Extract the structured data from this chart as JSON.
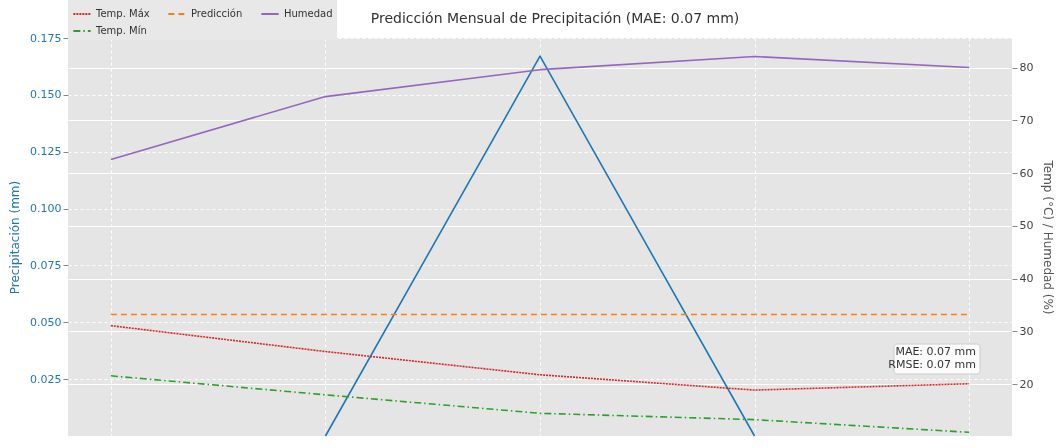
{
  "chart_data": {
    "type": "line",
    "title": "Predicción Mensual de Precipitación (MAE: 0.07 mm)",
    "ylabel": "Precipitación (mm)",
    "y2label": "Temp (°C) / Humedad (%)",
    "categories": [
      null,
      null,
      null,
      null,
      null
    ],
    "series": [
      {
        "color": "#1f77b4",
        "values": [
          null,
          0,
          0.167,
          0,
          null
        ],
        "line_style": "solid"
      },
      {
        "name": "Temp. Máx",
        "color": "#d62728",
        "axis": "y2",
        "values": [
          31.1,
          26.2,
          21.8,
          18.9,
          20.1
        ],
        "line_style": "dotted"
      },
      {
        "name": "Humedad",
        "color": "#9467bd",
        "axis": "y2",
        "values": [
          62.6,
          74.5,
          79.6,
          82.1,
          80.0
        ],
        "line_style": "solid"
      },
      {
        "name": "Predicción",
        "color": "#ff7f0e",
        "values": [
          0.0534,
          0.0534,
          0.0534,
          0.0534,
          0.0534
        ],
        "line_style": "dashed"
      },
      {
        "name": "Temp. Mín",
        "color": "#2ca02c",
        "axis": "y2",
        "values": [
          21.6,
          18.0,
          14.5,
          13.3,
          10.9
        ],
        "line_style": "dashdot"
      }
    ],
    "ylim": [
      0,
      0.175
    ],
    "yticks": [
      {
        "value": 0.025,
        "label": "0.025"
      },
      {
        "value": 0.05,
        "label": "0.050"
      },
      {
        "value": 0.075,
        "label": "0.075"
      },
      {
        "value": 0.1,
        "label": "0.100"
      },
      {
        "value": 0.125,
        "label": "0.125"
      },
      {
        "value": 0.15,
        "label": "0.150"
      },
      {
        "value": 0.175,
        "label": "0.175"
      }
    ],
    "y2lim": [
      10.2,
      85.6
    ],
    "y2ticks": [
      20,
      30,
      40,
      50,
      60,
      70,
      80
    ],
    "annotations": [
      "MAE: 0.07 mm",
      "RMSE: 0.07 mm"
    ],
    "grid": true,
    "legend": "top left",
    "marker": "none"
  }
}
